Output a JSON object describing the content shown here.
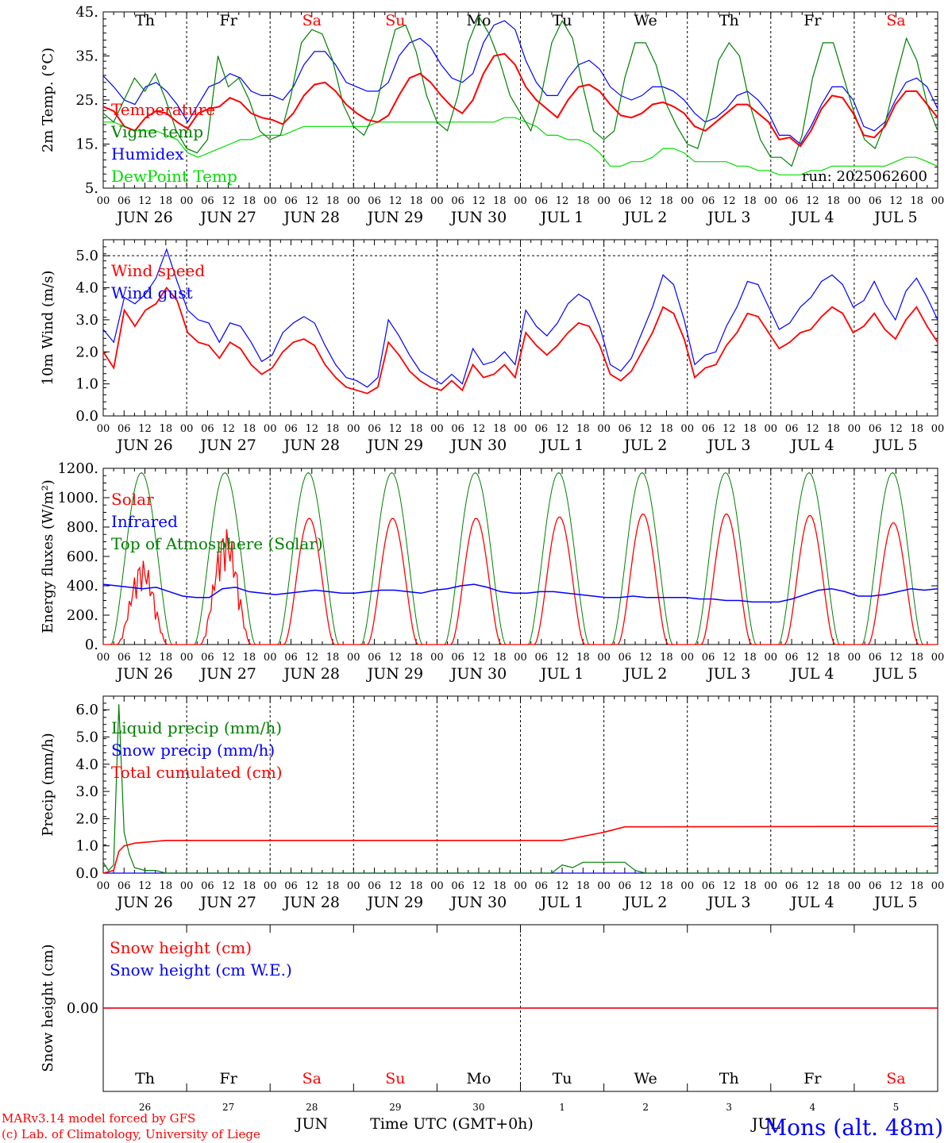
{
  "days": [
    {
      "abbr": "Th",
      "weekend": false,
      "date_label": "JUN 26",
      "num": "26"
    },
    {
      "abbr": "Fr",
      "weekend": false,
      "date_label": "JUN 27",
      "num": "27"
    },
    {
      "abbr": "Sa",
      "weekend": true,
      "date_label": "JUN 28",
      "num": "28"
    },
    {
      "abbr": "Su",
      "weekend": true,
      "date_label": "JUN 29",
      "num": "29"
    },
    {
      "abbr": "Mo",
      "weekend": false,
      "date_label": "JUN 30",
      "num": "30"
    },
    {
      "abbr": "Tu",
      "weekend": false,
      "date_label": "JUL  1",
      "num": "1"
    },
    {
      "abbr": "We",
      "weekend": false,
      "date_label": "JUL  2",
      "num": "2"
    },
    {
      "abbr": "Th",
      "weekend": false,
      "date_label": "JUL  3",
      "num": "3"
    },
    {
      "abbr": "Fr",
      "weekend": false,
      "date_label": "JUL  4",
      "num": "4"
    },
    {
      "abbr": "Sa",
      "weekend": true,
      "date_label": "JUL  5",
      "num": "5"
    }
  ],
  "hour_ticks": [
    "00",
    "06",
    "12",
    "18"
  ],
  "colors": {
    "red": "#ff0000",
    "green": "#008000",
    "blue": "#0000ff",
    "lime": "#00cc00",
    "weekend": "#ff0000"
  },
  "footer": {
    "model_line": "MARv3.14 model forced by GFS",
    "copyright_line": "(c) Lab. of Climatology, University of Liege",
    "month_left": "JUN",
    "month_right": "JUL",
    "time_axis": "Time UTC (GMT+0h)",
    "station": "Mons (alt. 48m)"
  },
  "run_label": "run: 2025062600",
  "chart_data": [
    {
      "type": "line",
      "ylabel": "2m Temp. (°C)",
      "ylim": [
        5,
        45
      ],
      "yticks": [
        "5.",
        "15.",
        "25.",
        "35.",
        "45."
      ],
      "grid": "vertical day separators",
      "legend": "top-left",
      "series": [
        {
          "name": "Temperature",
          "color": "#ff0000",
          "values": [
            23.5,
            22.5,
            19,
            18,
            21,
            22.5,
            22,
            20,
            18.5,
            22,
            23,
            23.5,
            25.5,
            24.5,
            22,
            21,
            20.5,
            19.5,
            22,
            26,
            28.5,
            29,
            27,
            24,
            22,
            20.5,
            20,
            21.5,
            26,
            30,
            31,
            29,
            26,
            23.5,
            22,
            25,
            31,
            35,
            35.5,
            33,
            28,
            25,
            23,
            21,
            25,
            28,
            28.5,
            27,
            24,
            21.5,
            21,
            22,
            24,
            24.5,
            23.5,
            22,
            19,
            18,
            20,
            22,
            24,
            24,
            22,
            20,
            16,
            16.5,
            14.5,
            18,
            23,
            26,
            25.5,
            22,
            17,
            16.5,
            19,
            24,
            27,
            27,
            24,
            21
          ]
        },
        {
          "name": "Vigne temp",
          "color": "#008000",
          "values": [
            22,
            20,
            25,
            30,
            27,
            31,
            25,
            18,
            14,
            13,
            16,
            35,
            28,
            30,
            25,
            18,
            16,
            17,
            26,
            38,
            41,
            40,
            34,
            24,
            19,
            17,
            22,
            32,
            41,
            42,
            36,
            26,
            20,
            18,
            26,
            38,
            44,
            40,
            34,
            26,
            22,
            18,
            26,
            38,
            43,
            39,
            28,
            18,
            16,
            18,
            30,
            38,
            38,
            33,
            24,
            19,
            15,
            14,
            22,
            34,
            38,
            35,
            24,
            16,
            12,
            12,
            10,
            17,
            30,
            38,
            38,
            30,
            22,
            16,
            14,
            20,
            30,
            39,
            34,
            24,
            18
          ]
        },
        {
          "name": "Humidex",
          "color": "#0000ff",
          "values": [
            30.5,
            28,
            25,
            24,
            28,
            29,
            27,
            24,
            20,
            24,
            28,
            29,
            31,
            30,
            27,
            26,
            26,
            25,
            28,
            33,
            36,
            36,
            33,
            29,
            28,
            27,
            27,
            29,
            35,
            38,
            39,
            37,
            33,
            30,
            29,
            31,
            38,
            42,
            43,
            41,
            34,
            29,
            26,
            26,
            30,
            33,
            34,
            32,
            28,
            26,
            25,
            26,
            28,
            28,
            27,
            25,
            22,
            20,
            21,
            23,
            26,
            27,
            25,
            22,
            17,
            17,
            15,
            19,
            24,
            28,
            28,
            25,
            19,
            18,
            20,
            25,
            29,
            30,
            28,
            23
          ]
        },
        {
          "name": "DewPoint Temp",
          "color": "#00dd00",
          "values": [
            20,
            20,
            19,
            18,
            18,
            18,
            17,
            16,
            13,
            12,
            13,
            14,
            15,
            16,
            16,
            17,
            17,
            17,
            18,
            19,
            19,
            19,
            19,
            19,
            19,
            19,
            20,
            20,
            20,
            20,
            20,
            20,
            20,
            20,
            20,
            20,
            20,
            20,
            21,
            21,
            20,
            19,
            17,
            17,
            16,
            16,
            15,
            13,
            10,
            10,
            11,
            11,
            12,
            14,
            14,
            13,
            11,
            11,
            11,
            11,
            10,
            10,
            9,
            9,
            8,
            8,
            8,
            9,
            9,
            10,
            10,
            10,
            10,
            10,
            10,
            11,
            12,
            12,
            11,
            10
          ]
        }
      ]
    },
    {
      "type": "line",
      "ylabel": "10m Wind (m/s)",
      "ylim": [
        0,
        5.5
      ],
      "yticks": [
        "0.0",
        "1.0",
        "2.0",
        "3.0",
        "4.0",
        "5.0"
      ],
      "grid": "vertical day separators, dashed line at 5.0",
      "legend": "top-left",
      "series": [
        {
          "name": "Wind speed",
          "color": "#ff0000",
          "values": [
            2,
            1.5,
            3.3,
            2.8,
            3.3,
            3.5,
            4.0,
            3.6,
            2.6,
            2.3,
            2.2,
            1.8,
            2.3,
            2.1,
            1.6,
            1.3,
            1.5,
            2.0,
            2.3,
            2.4,
            2.2,
            1.6,
            1.2,
            0.9,
            0.8,
            0.7,
            0.9,
            2.3,
            1.9,
            1.4,
            1.1,
            0.9,
            0.8,
            1.1,
            0.8,
            1.6,
            1.2,
            1.3,
            1.6,
            1.2,
            2.6,
            2.2,
            1.9,
            2.2,
            2.6,
            2.9,
            2.8,
            2.2,
            1.3,
            1.1,
            1.4,
            2.0,
            2.6,
            3.4,
            3.2,
            2.4,
            1.2,
            1.5,
            1.6,
            2.2,
            2.6,
            3.2,
            3.1,
            2.6,
            2.1,
            2.3,
            2.6,
            2.7,
            3.1,
            3.4,
            3.2,
            2.6,
            2.8,
            3.2,
            2.7,
            2.4,
            3.0,
            3.4,
            2.8,
            2.3
          ]
        },
        {
          "name": "Wind gust",
          "color": "#0000ff",
          "values": [
            2.7,
            2.3,
            3.7,
            3.5,
            3.8,
            4.3,
            5.2,
            4.2,
            3.3,
            3.0,
            2.9,
            2.3,
            2.9,
            2.8,
            2.3,
            1.7,
            1.9,
            2.6,
            2.9,
            3.1,
            2.9,
            2.2,
            1.6,
            1.2,
            1.1,
            0.9,
            1.2,
            3.0,
            2.5,
            1.9,
            1.4,
            1.2,
            1.0,
            1.3,
            1.0,
            2.1,
            1.6,
            1.7,
            2.0,
            1.6,
            3.3,
            2.8,
            2.5,
            2.9,
            3.5,
            3.8,
            3.6,
            2.8,
            1.6,
            1.4,
            1.8,
            2.6,
            3.4,
            4.4,
            4.1,
            3.0,
            1.6,
            1.9,
            2.0,
            2.8,
            3.4,
            4.2,
            4.1,
            3.4,
            2.7,
            2.9,
            3.4,
            3.7,
            4.2,
            4.4,
            4.1,
            3.4,
            3.6,
            4.2,
            3.5,
            3.0,
            3.9,
            4.3,
            3.7,
            3.0
          ]
        }
      ]
    },
    {
      "type": "line",
      "ylabel": "Energy fluxes (W/m²)",
      "ylim": [
        0,
        1200
      ],
      "yticks": [
        "0.",
        "200.",
        "400.",
        "600.",
        "800.",
        "1000.",
        "1200."
      ],
      "grid": "vertical day separators",
      "legend": "top-left",
      "series": [
        {
          "name": "Solar",
          "color": "#ff0000",
          "peaks": [
            580,
            800,
            860,
            860,
            860,
            870,
            890,
            890,
            880,
            830
          ]
        },
        {
          "name": "Infrared",
          "color": "#0000ff",
          "values": [
            410,
            400,
            390,
            380,
            390,
            360,
            330,
            320,
            320,
            380,
            390,
            360,
            350,
            340,
            350,
            360,
            370,
            360,
            350,
            350,
            360,
            370,
            370,
            360,
            350,
            370,
            380,
            400,
            410,
            390,
            360,
            350,
            350,
            360,
            360,
            350,
            340,
            330,
            320,
            320,
            330,
            320,
            320,
            320,
            320,
            310,
            310,
            300,
            300,
            290,
            290,
            290,
            310,
            340,
            370,
            380,
            360,
            330,
            330,
            340,
            360,
            380,
            370,
            380
          ]
        },
        {
          "name": "Top of Atmosphere (Solar)",
          "color": "#008000",
          "peak": 1170
        }
      ]
    },
    {
      "type": "line",
      "ylabel": "Precip (mm/h)",
      "ylim": [
        0,
        6.5
      ],
      "yticks": [
        "0.0",
        "1.0",
        "2.0",
        "3.0",
        "4.0",
        "5.0",
        "6.0"
      ],
      "grid": "vertical day separators",
      "legend": "top-left",
      "series": [
        {
          "name": "Liquid precip (mm/h)",
          "color": "#008000",
          "points": [
            [
              0,
              0.4
            ],
            [
              0.5,
              0.1
            ],
            [
              1,
              0.3
            ],
            [
              1.5,
              6.2
            ],
            [
              2,
              1.5
            ],
            [
              2.5,
              0.7
            ],
            [
              3,
              0.2
            ],
            [
              4,
              0.1
            ],
            [
              5,
              0.1
            ],
            [
              6,
              0
            ],
            [
              43,
              0
            ],
            [
              44,
              0.3
            ],
            [
              45,
              0.2
            ],
            [
              46,
              0.4
            ],
            [
              50,
              0.4
            ],
            [
              51,
              0.1
            ],
            [
              52,
              0
            ],
            [
              80,
              0
            ]
          ]
        },
        {
          "name": "Snow precip (mm/h)",
          "color": "#0000ff",
          "points": [
            [
              0,
              0
            ],
            [
              80,
              0
            ]
          ]
        },
        {
          "name": "Total cumulated (cm)",
          "color": "#ff0000",
          "points": [
            [
              0,
              0
            ],
            [
              1,
              0.1
            ],
            [
              1.5,
              0.8
            ],
            [
              2,
              1.0
            ],
            [
              3,
              1.1
            ],
            [
              6,
              1.2
            ],
            [
              44,
              1.2
            ],
            [
              46,
              1.35
            ],
            [
              48,
              1.5
            ],
            [
              50,
              1.7
            ],
            [
              80,
              1.72
            ]
          ]
        }
      ]
    },
    {
      "type": "line",
      "ylabel": "Snow height (cm)",
      "ylim": [
        -1,
        1
      ],
      "yticks": [
        "0.00"
      ],
      "grid": "vertical line at JUL 1",
      "legend": "top-left",
      "series": [
        {
          "name": "Snow height (cm)",
          "color": "#ff0000",
          "values": [
            0,
            0
          ]
        },
        {
          "name": "Snow height (cm W.E.)",
          "color": "#0000ff",
          "values": [
            0,
            0
          ]
        }
      ]
    }
  ]
}
